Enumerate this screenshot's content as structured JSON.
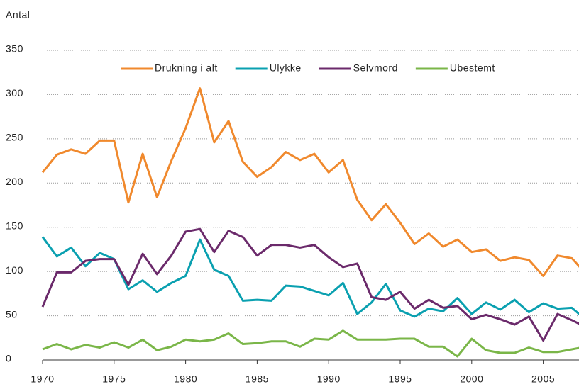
{
  "chart_data": {
    "type": "line",
    "y_label": "Antal",
    "x": [
      1970,
      1971,
      1972,
      1973,
      1974,
      1975,
      1976,
      1977,
      1978,
      1979,
      1980,
      1981,
      1982,
      1983,
      1984,
      1985,
      1986,
      1987,
      1988,
      1989,
      1990,
      1991,
      1992,
      1993,
      1994,
      1995,
      1996,
      1997,
      1998,
      1999,
      2000,
      2001,
      2002,
      2003,
      2004,
      2005,
      2006,
      2007,
      2008
    ],
    "series": [
      {
        "name": "Drukning i alt",
        "color": "#f0892d",
        "values": [
          212,
          232,
          238,
          233,
          248,
          248,
          178,
          233,
          184,
          225,
          262,
          307,
          246,
          270,
          224,
          207,
          218,
          235,
          226,
          233,
          212,
          226,
          181,
          158,
          176,
          155,
          131,
          143,
          128,
          136,
          122,
          125,
          112,
          116,
          113,
          95,
          118,
          115,
          97
        ]
      },
      {
        "name": "Ulykke",
        "color": "#0aa0b0",
        "values": [
          139,
          117,
          127,
          106,
          121,
          114,
          80,
          90,
          77,
          87,
          95,
          136,
          102,
          95,
          67,
          68,
          67,
          84,
          83,
          78,
          73,
          87,
          52,
          65,
          86,
          56,
          49,
          58,
          55,
          70,
          52,
          65,
          57,
          68,
          54,
          64,
          58,
          59,
          45
        ]
      },
      {
        "name": "Selvmord",
        "color": "#6b2a6b",
        "values": [
          60,
          99,
          99,
          112,
          114,
          114,
          85,
          120,
          97,
          118,
          145,
          148,
          122,
          146,
          139,
          118,
          130,
          130,
          127,
          130,
          116,
          105,
          109,
          71,
          68,
          77,
          58,
          68,
          59,
          61,
          46,
          51,
          46,
          40,
          49,
          22,
          52,
          45,
          37
        ]
      },
      {
        "name": "Ubestemt",
        "color": "#7ab648",
        "values": [
          12,
          18,
          12,
          17,
          14,
          20,
          14,
          23,
          11,
          15,
          23,
          21,
          23,
          30,
          18,
          19,
          21,
          21,
          15,
          24,
          23,
          33,
          23,
          23,
          23,
          24,
          24,
          15,
          15,
          4,
          24,
          11,
          8,
          8,
          14,
          9,
          9,
          12,
          15
        ]
      }
    ],
    "xlim": [
      1970,
      2007.5
    ],
    "xticks": [
      1970,
      1975,
      1980,
      1985,
      1990,
      1995,
      2000,
      2005
    ],
    "ylim": [
      0,
      350
    ],
    "yticks": [
      0,
      50,
      100,
      150,
      200,
      250,
      300,
      350
    ],
    "grid": true,
    "legend": "top"
  }
}
